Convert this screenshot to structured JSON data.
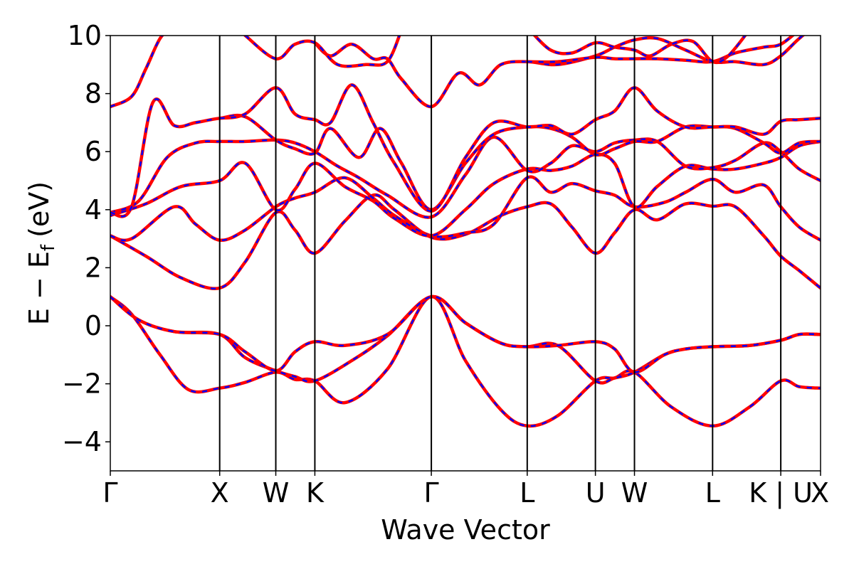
{
  "chart_data": {
    "type": "line",
    "title": "",
    "xlabel": "Wave Vector",
    "ylabel": "E − E",
    "ylabel_subscript": "f",
    "ylabel_unit": "(eV)",
    "ylim": [
      -5,
      10
    ],
    "yticks": [
      -4,
      -2,
      0,
      2,
      4,
      6,
      8,
      10
    ],
    "ytick_labels": [
      "−4",
      "−2",
      "0",
      "2",
      "4",
      "6",
      "8",
      "10"
    ],
    "xlim": [
      0,
      10
    ],
    "kpoints": [
      {
        "label": "Γ",
        "x": 0.0
      },
      {
        "label": "X",
        "x": 1.54
      },
      {
        "label": "W",
        "x": 2.33
      },
      {
        "label": "K",
        "x": 2.88
      },
      {
        "label": "Γ",
        "x": 4.52
      },
      {
        "label": "L",
        "x": 5.87
      },
      {
        "label": "U",
        "x": 6.83
      },
      {
        "label": "W",
        "x": 7.38
      },
      {
        "label": "L",
        "x": 8.48
      },
      {
        "label": "K | U",
        "x": 9.44
      },
      {
        "label": "X",
        "x": 10.0
      }
    ],
    "series_colors": {
      "solid": "#ff0000",
      "dashed": "#0000ff"
    },
    "bands": [
      [
        [
          0,
          1.0
        ],
        [
          0.3,
          0.4
        ],
        [
          0.7,
          -1.0
        ],
        [
          1.1,
          -2.2
        ],
        [
          1.54,
          -2.15
        ],
        [
          1.9,
          -1.95
        ],
        [
          2.33,
          -1.6
        ],
        [
          2.6,
          -1.85
        ],
        [
          2.88,
          -1.9
        ],
        [
          3.3,
          -2.65
        ],
        [
          3.9,
          -1.5
        ],
        [
          4.52,
          1.0
        ],
        [
          5.0,
          -1.2
        ],
        [
          5.5,
          -2.9
        ],
        [
          5.87,
          -3.45
        ],
        [
          6.3,
          -3.1
        ],
        [
          6.83,
          -1.9
        ],
        [
          7.1,
          -1.8
        ],
        [
          7.38,
          -1.6
        ],
        [
          7.9,
          -2.8
        ],
        [
          8.48,
          -3.45
        ],
        [
          9.0,
          -2.8
        ],
        [
          9.44,
          -1.9
        ],
        [
          9.7,
          -2.1
        ],
        [
          10,
          -2.15
        ]
      ],
      [
        [
          0,
          1.0
        ],
        [
          0.4,
          0.2
        ],
        [
          0.9,
          -0.2
        ],
        [
          1.54,
          -0.3
        ],
        [
          1.9,
          -1.1
        ],
        [
          2.33,
          -1.55
        ],
        [
          2.6,
          -1.75
        ],
        [
          2.88,
          -1.9
        ],
        [
          3.4,
          -1.2
        ],
        [
          3.9,
          -0.35
        ],
        [
          4.52,
          1.0
        ],
        [
          5.0,
          0.1
        ],
        [
          5.5,
          -0.6
        ],
        [
          5.87,
          -0.72
        ],
        [
          6.3,
          -0.68
        ],
        [
          6.83,
          -1.9
        ],
        [
          7.1,
          -1.8
        ],
        [
          7.38,
          -1.6
        ],
        [
          7.8,
          -1.0
        ],
        [
          8.1,
          -0.8
        ],
        [
          8.48,
          -0.72
        ],
        [
          9.0,
          -0.68
        ],
        [
          9.44,
          -0.5
        ],
        [
          9.7,
          -0.3
        ],
        [
          10,
          -0.3
        ]
      ],
      [
        [
          0,
          1.0
        ],
        [
          0.4,
          0.2
        ],
        [
          0.9,
          -0.2
        ],
        [
          1.54,
          -0.3
        ],
        [
          1.9,
          -0.9
        ],
        [
          2.33,
          -1.55
        ],
        [
          2.6,
          -0.9
        ],
        [
          2.88,
          -0.55
        ],
        [
          3.3,
          -0.68
        ],
        [
          3.9,
          -0.3
        ],
        [
          4.52,
          1.0
        ],
        [
          5.0,
          0.1
        ],
        [
          5.5,
          -0.6
        ],
        [
          5.87,
          -0.72
        ],
        [
          6.3,
          -0.68
        ],
        [
          6.83,
          -0.55
        ],
        [
          7.1,
          -0.8
        ],
        [
          7.38,
          -1.6
        ],
        [
          7.8,
          -1.0
        ],
        [
          8.1,
          -0.8
        ],
        [
          8.48,
          -0.72
        ],
        [
          9.0,
          -0.68
        ],
        [
          9.44,
          -0.5
        ],
        [
          9.7,
          -0.3
        ],
        [
          10,
          -0.3
        ]
      ],
      [
        [
          0,
          3.1
        ],
        [
          0.5,
          2.4
        ],
        [
          1.0,
          1.65
        ],
        [
          1.54,
          1.3
        ],
        [
          1.9,
          2.2
        ],
        [
          2.33,
          3.9
        ],
        [
          2.6,
          3.3
        ],
        [
          2.88,
          2.5
        ],
        [
          3.3,
          3.6
        ],
        [
          3.7,
          4.5
        ],
        [
          4.0,
          4.0
        ],
        [
          4.52,
          3.05
        ],
        [
          5.0,
          3.15
        ],
        [
          5.5,
          3.8
        ],
        [
          5.87,
          4.1
        ],
        [
          6.2,
          4.2
        ],
        [
          6.5,
          3.4
        ],
        [
          6.83,
          2.5
        ],
        [
          7.1,
          3.2
        ],
        [
          7.38,
          4.0
        ],
        [
          7.7,
          3.65
        ],
        [
          8.1,
          4.2
        ],
        [
          8.48,
          4.12
        ],
        [
          8.8,
          4.1
        ],
        [
          9.2,
          3.1
        ],
        [
          9.44,
          2.4
        ],
        [
          9.7,
          1.9
        ],
        [
          10,
          1.3
        ]
      ],
      [
        [
          0,
          3.1
        ],
        [
          0.3,
          3.0
        ],
        [
          0.9,
          4.1
        ],
        [
          1.2,
          3.5
        ],
        [
          1.54,
          2.95
        ],
        [
          1.9,
          3.3
        ],
        [
          2.33,
          4.1
        ],
        [
          2.6,
          4.4
        ],
        [
          2.88,
          4.6
        ],
        [
          3.3,
          5.1
        ],
        [
          3.7,
          4.4
        ],
        [
          4.0,
          3.8
        ],
        [
          4.52,
          3.1
        ],
        [
          5.0,
          3.2
        ],
        [
          5.4,
          3.5
        ],
        [
          5.87,
          5.1
        ],
        [
          6.2,
          4.6
        ],
        [
          6.5,
          4.9
        ],
        [
          6.83,
          4.65
        ],
        [
          7.1,
          4.5
        ],
        [
          7.38,
          4.1
        ],
        [
          7.8,
          4.25
        ],
        [
          8.1,
          4.6
        ],
        [
          8.48,
          5.05
        ],
        [
          8.8,
          4.6
        ],
        [
          9.2,
          4.85
        ],
        [
          9.44,
          4.1
        ],
        [
          9.7,
          3.4
        ],
        [
          10,
          2.95
        ]
      ],
      [
        [
          0,
          3.8
        ],
        [
          0.5,
          4.2
        ],
        [
          1.0,
          4.8
        ],
        [
          1.54,
          5.0
        ],
        [
          1.9,
          5.6
        ],
        [
          2.33,
          4.0
        ],
        [
          2.6,
          4.7
        ],
        [
          2.88,
          5.6
        ],
        [
          3.3,
          4.8
        ],
        [
          3.7,
          4.3
        ],
        [
          4.0,
          3.7
        ],
        [
          4.52,
          3.1
        ],
        [
          5.0,
          4.0
        ],
        [
          5.4,
          4.9
        ],
        [
          5.87,
          5.4
        ],
        [
          6.2,
          5.35
        ],
        [
          6.5,
          5.5
        ],
        [
          6.83,
          5.9
        ],
        [
          7.1,
          5.6
        ],
        [
          7.38,
          4.1
        ],
        [
          7.7,
          4.8
        ],
        [
          8.1,
          5.5
        ],
        [
          8.48,
          5.4
        ],
        [
          8.8,
          5.4
        ],
        [
          9.2,
          5.6
        ],
        [
          9.44,
          5.8
        ],
        [
          9.7,
          6.2
        ],
        [
          10,
          6.35
        ]
      ],
      [
        [
          0,
          3.9
        ],
        [
          0.4,
          4.3
        ],
        [
          0.8,
          5.8
        ],
        [
          1.2,
          6.3
        ],
        [
          1.54,
          6.35
        ],
        [
          1.9,
          6.35
        ],
        [
          2.33,
          6.4
        ],
        [
          2.6,
          6.3
        ],
        [
          2.88,
          6.0
        ],
        [
          3.2,
          5.5
        ],
        [
          3.5,
          5.1
        ],
        [
          3.9,
          4.5
        ],
        [
          4.52,
          3.75
        ],
        [
          5.0,
          5.2
        ],
        [
          5.4,
          6.5
        ],
        [
          5.87,
          5.35
        ],
        [
          6.2,
          5.6
        ],
        [
          6.5,
          6.2
        ],
        [
          6.83,
          6.0
        ],
        [
          7.1,
          6.3
        ],
        [
          7.38,
          6.4
        ],
        [
          7.7,
          6.35
        ],
        [
          8.1,
          5.5
        ],
        [
          8.48,
          5.45
        ],
        [
          8.8,
          5.7
        ],
        [
          9.2,
          6.3
        ],
        [
          9.44,
          6.0
        ],
        [
          9.7,
          5.4
        ],
        [
          10,
          5.0
        ]
      ],
      [
        [
          0,
          3.9
        ],
        [
          0.3,
          4.1
        ],
        [
          0.6,
          7.7
        ],
        [
          0.9,
          6.9
        ],
        [
          1.2,
          7.0
        ],
        [
          1.54,
          7.15
        ],
        [
          1.9,
          7.2
        ],
        [
          2.33,
          6.4
        ],
        [
          2.6,
          6.1
        ],
        [
          2.88,
          5.95
        ],
        [
          3.1,
          6.8
        ],
        [
          3.5,
          5.8
        ],
        [
          3.8,
          6.8
        ],
        [
          4.1,
          5.6
        ],
        [
          4.52,
          4.0
        ],
        [
          5.0,
          5.6
        ],
        [
          5.4,
          6.6
        ],
        [
          5.87,
          6.85
        ],
        [
          6.2,
          6.8
        ],
        [
          6.5,
          6.5
        ],
        [
          6.83,
          5.9
        ],
        [
          7.1,
          6.1
        ],
        [
          7.38,
          6.35
        ],
        [
          7.7,
          6.35
        ],
        [
          8.1,
          6.85
        ],
        [
          8.48,
          6.85
        ],
        [
          8.8,
          6.8
        ],
        [
          9.2,
          6.3
        ],
        [
          9.44,
          5.95
        ],
        [
          9.7,
          6.3
        ],
        [
          10,
          6.35
        ]
      ],
      [
        [
          0,
          7.55
        ],
        [
          0.3,
          7.9
        ],
        [
          0.5,
          8.85
        ],
        [
          0.7,
          9.9
        ],
        [
          0.9,
          10.4
        ]
      ],
      [
        [
          1.54,
          7.15
        ],
        [
          1.9,
          7.3
        ],
        [
          2.33,
          8.2
        ],
        [
          2.6,
          7.3
        ],
        [
          2.88,
          7.1
        ],
        [
          3.1,
          7.0
        ],
        [
          3.4,
          8.3
        ],
        [
          3.7,
          7.0
        ],
        [
          4.0,
          5.6
        ],
        [
          4.52,
          3.95
        ],
        [
          5.0,
          5.8
        ],
        [
          5.4,
          7.0
        ],
        [
          5.87,
          6.85
        ],
        [
          6.2,
          6.9
        ],
        [
          6.5,
          6.6
        ],
        [
          6.83,
          7.1
        ],
        [
          7.1,
          7.4
        ],
        [
          7.38,
          8.2
        ],
        [
          7.7,
          7.4
        ],
        [
          8.1,
          6.85
        ],
        [
          8.48,
          6.85
        ],
        [
          8.8,
          6.85
        ],
        [
          9.2,
          6.6
        ],
        [
          9.44,
          7.05
        ],
        [
          9.7,
          7.1
        ],
        [
          10,
          7.15
        ]
      ],
      [
        [
          2.88,
          9.75
        ],
        [
          3.1,
          9.3
        ],
        [
          3.4,
          9.7
        ],
        [
          3.7,
          9.2
        ],
        [
          3.9,
          9.2
        ],
        [
          4.1,
          8.5
        ],
        [
          4.52,
          7.55
        ],
        [
          4.9,
          8.7
        ],
        [
          5.2,
          8.3
        ],
        [
          5.5,
          9.0
        ],
        [
          5.87,
          9.1
        ],
        [
          6.3,
          9.0
        ],
        [
          6.83,
          9.3
        ],
        [
          7.1,
          9.6
        ],
        [
          7.38,
          9.85
        ],
        [
          7.7,
          9.9
        ],
        [
          8.1,
          9.5
        ],
        [
          8.48,
          9.1
        ],
        [
          8.8,
          9.1
        ],
        [
          9.2,
          9.0
        ],
        [
          9.44,
          9.3
        ],
        [
          9.7,
          9.9
        ],
        [
          10,
          10.5
        ]
      ],
      [
        [
          1.9,
          10.0
        ],
        [
          2.33,
          9.2
        ],
        [
          2.6,
          9.7
        ],
        [
          2.88,
          9.75
        ],
        [
          3.2,
          9.0
        ],
        [
          3.6,
          9.0
        ],
        [
          3.9,
          9.1
        ],
        [
          4.1,
          10.2
        ]
      ],
      [
        [
          5.87,
          9.1
        ],
        [
          6.3,
          9.1
        ],
        [
          6.83,
          9.25
        ],
        [
          7.1,
          9.2
        ],
        [
          7.38,
          9.2
        ],
        [
          7.7,
          9.2
        ],
        [
          8.1,
          9.15
        ],
        [
          8.48,
          9.1
        ],
        [
          8.8,
          9.4
        ],
        [
          9.2,
          9.6
        ],
        [
          9.44,
          9.7
        ],
        [
          9.7,
          10.2
        ]
      ],
      [
        [
          5.9,
          10.2
        ],
        [
          6.2,
          9.5
        ],
        [
          6.5,
          9.4
        ],
        [
          6.83,
          9.75
        ],
        [
          7.1,
          9.6
        ],
        [
          7.38,
          9.5
        ],
        [
          7.6,
          9.3
        ],
        [
          7.9,
          9.7
        ],
        [
          8.2,
          9.8
        ],
        [
          8.48,
          9.1
        ],
        [
          8.7,
          9.3
        ],
        [
          9.0,
          10.2
        ]
      ]
    ]
  }
}
